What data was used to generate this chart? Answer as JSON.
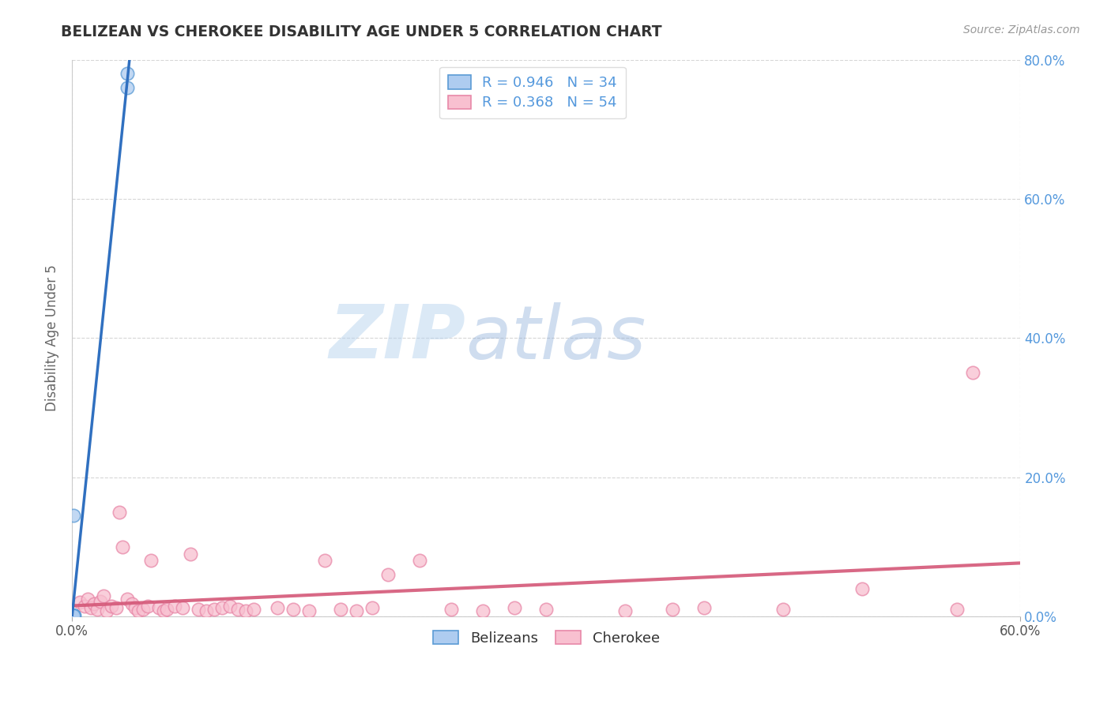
{
  "title": "BELIZEAN VS CHEROKEE DISABILITY AGE UNDER 5 CORRELATION CHART",
  "source": "Source: ZipAtlas.com",
  "ylabel": "Disability Age Under 5",
  "xlim": [
    0.0,
    0.6
  ],
  "ylim": [
    0.0,
    0.8
  ],
  "y_ticks": [
    0.0,
    0.2,
    0.4,
    0.6,
    0.8
  ],
  "y_tick_labels_right": [
    "0.0%",
    "20.0%",
    "40.0%",
    "60.0%",
    "80.0%"
  ],
  "belizean_color": "#aeccf0",
  "belizean_edge_color": "#5b9bd5",
  "cherokee_color": "#f8c0d0",
  "cherokee_edge_color": "#e888a8",
  "belizean_line_color": "#3070c0",
  "cherokee_line_color": "#d45878",
  "belizean_R": 0.946,
  "belizean_N": 34,
  "cherokee_R": 0.368,
  "cherokee_N": 54,
  "background_color": "#ffffff",
  "grid_color": "#bbbbbb",
  "title_color": "#333333",
  "right_axis_color": "#5599dd",
  "belizean_x": [
    0.0005,
    0.001,
    0.001,
    0.001,
    0.001,
    0.001,
    0.0015,
    0.001,
    0.001,
    0.001,
    0.001,
    0.001,
    0.001,
    0.0008,
    0.001,
    0.001,
    0.001,
    0.001,
    0.001,
    0.001,
    0.001,
    0.001,
    0.001,
    0.001,
    0.001,
    0.001,
    0.001,
    0.001,
    0.001,
    0.001,
    0.001,
    0.001,
    0.035,
    0.035
  ],
  "belizean_y": [
    0.0005,
    0.001,
    0.001,
    0.001,
    0.001,
    0.001,
    0.001,
    0.001,
    0.001,
    0.001,
    0.001,
    0.001,
    0.001,
    0.001,
    0.001,
    0.001,
    0.001,
    0.001,
    0.001,
    0.001,
    0.001,
    0.001,
    0.001,
    0.001,
    0.001,
    0.001,
    0.001,
    0.001,
    0.001,
    0.001,
    0.001,
    0.145,
    0.78,
    0.76
  ],
  "cherokee_x": [
    0.005,
    0.008,
    0.01,
    0.012,
    0.014,
    0.016,
    0.018,
    0.02,
    0.022,
    0.025,
    0.028,
    0.03,
    0.032,
    0.035,
    0.038,
    0.04,
    0.042,
    0.045,
    0.048,
    0.05,
    0.055,
    0.058,
    0.06,
    0.065,
    0.07,
    0.075,
    0.08,
    0.085,
    0.09,
    0.095,
    0.1,
    0.105,
    0.11,
    0.115,
    0.13,
    0.14,
    0.15,
    0.16,
    0.17,
    0.18,
    0.19,
    0.2,
    0.22,
    0.24,
    0.26,
    0.28,
    0.3,
    0.35,
    0.38,
    0.4,
    0.45,
    0.5,
    0.56,
    0.57
  ],
  "cherokee_y": [
    0.02,
    0.015,
    0.025,
    0.012,
    0.018,
    0.01,
    0.022,
    0.03,
    0.008,
    0.015,
    0.012,
    0.15,
    0.1,
    0.025,
    0.018,
    0.012,
    0.008,
    0.01,
    0.015,
    0.08,
    0.012,
    0.008,
    0.01,
    0.015,
    0.012,
    0.09,
    0.01,
    0.008,
    0.01,
    0.012,
    0.015,
    0.01,
    0.008,
    0.01,
    0.012,
    0.01,
    0.008,
    0.08,
    0.01,
    0.008,
    0.012,
    0.06,
    0.08,
    0.01,
    0.008,
    0.012,
    0.01,
    0.008,
    0.01,
    0.012,
    0.01,
    0.04,
    0.01,
    0.35
  ]
}
